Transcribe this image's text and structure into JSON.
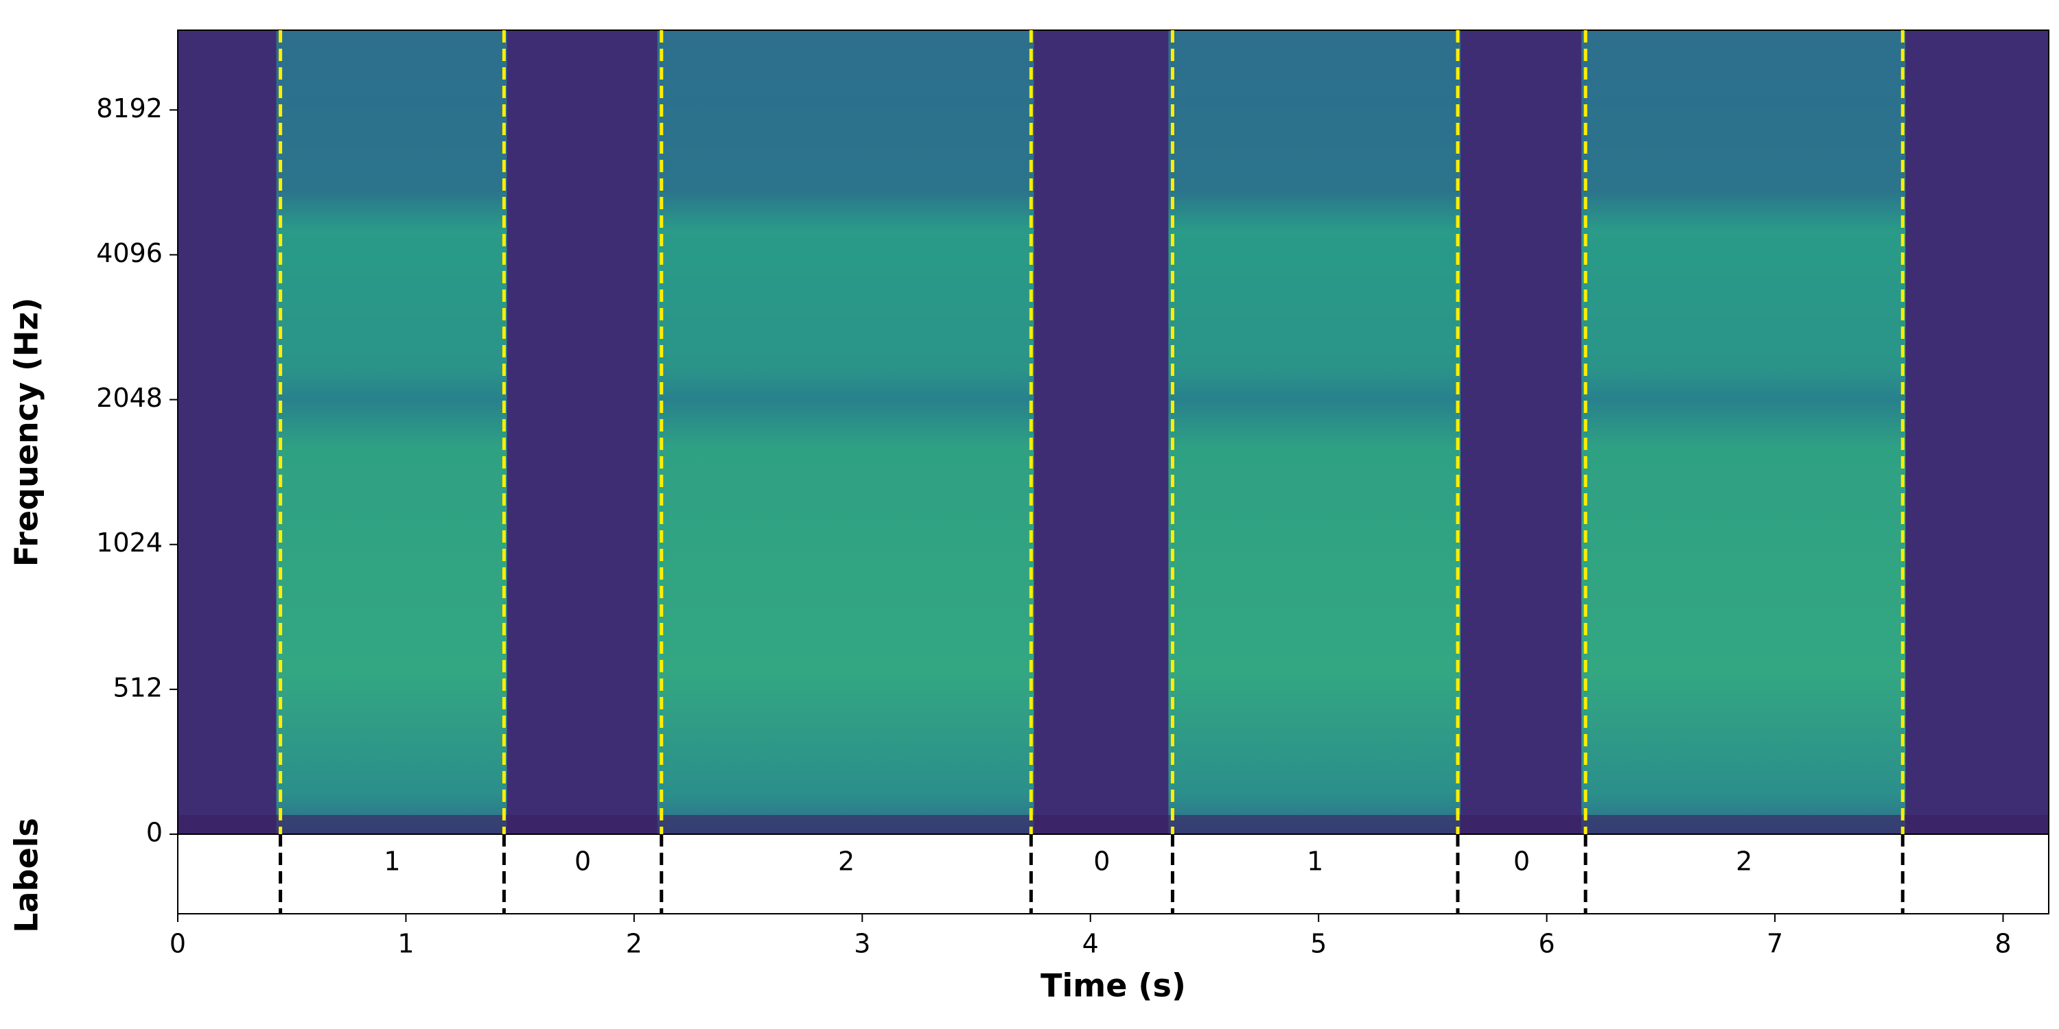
{
  "chart_data": {
    "type": "spectrogram",
    "x_label": "Time (s)",
    "y_label": "Frequency (Hz)",
    "label_panel_title": "Labels",
    "xlim": [
      0,
      8.2
    ],
    "xticks": [
      0,
      1,
      2,
      3,
      4,
      5,
      6,
      7,
      8
    ],
    "ylim": [
      0,
      12000
    ],
    "yticks": [
      0,
      512,
      1024,
      2048,
      4096,
      8192
    ],
    "yscale": "symlog",
    "linthresh": 512,
    "log_base": 2,
    "boundaries": [
      0.45,
      1.43,
      2.12,
      3.74,
      4.36,
      5.61,
      6.17,
      7.56
    ],
    "segment_labels": [
      1,
      0,
      2,
      0,
      1,
      0,
      2
    ],
    "boundary_color_spectrogram": "#ffee00",
    "boundary_color_labels": "#000000"
  }
}
